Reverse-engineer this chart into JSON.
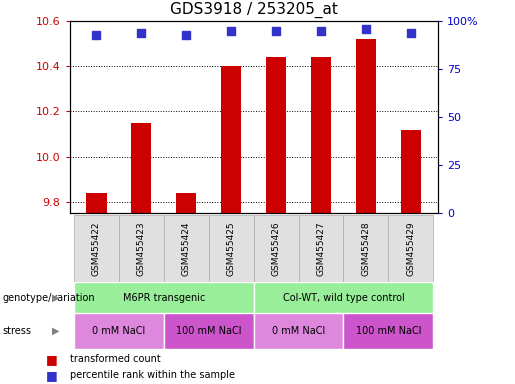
{
  "title": "GDS3918 / 253205_at",
  "samples": [
    "GSM455422",
    "GSM455423",
    "GSM455424",
    "GSM455425",
    "GSM455426",
    "GSM455427",
    "GSM455428",
    "GSM455429"
  ],
  "bar_values": [
    9.84,
    10.15,
    9.84,
    10.4,
    10.44,
    10.44,
    10.52,
    10.12
  ],
  "percentile_values": [
    93,
    94,
    93,
    95,
    95,
    95,
    96,
    94
  ],
  "ylim_left": [
    9.75,
    10.6
  ],
  "ylim_right": [
    0,
    100
  ],
  "yticks_left": [
    9.8,
    10.0,
    10.2,
    10.4,
    10.6
  ],
  "yticks_right": [
    0,
    25,
    50,
    75,
    100
  ],
  "bar_color": "#cc0000",
  "dot_color": "#3333cc",
  "bar_width": 0.45,
  "dot_size": 40,
  "genotype_groups": [
    {
      "label": "M6PR transgenic",
      "start": 0,
      "end": 4,
      "color": "#99ee99"
    },
    {
      "label": "Col-WT, wild type control",
      "start": 4,
      "end": 8,
      "color": "#99ee99"
    }
  ],
  "stress_groups": [
    {
      "label": "0 mM NaCl",
      "start": 0,
      "end": 2,
      "color": "#dd88dd"
    },
    {
      "label": "100 mM NaCl",
      "start": 2,
      "end": 4,
      "color": "#cc55cc"
    },
    {
      "label": "0 mM NaCl",
      "start": 4,
      "end": 6,
      "color": "#dd88dd"
    },
    {
      "label": "100 mM NaCl",
      "start": 6,
      "end": 8,
      "color": "#cc55cc"
    }
  ],
  "legend_bar_label": "transformed count",
  "legend_dot_label": "percentile rank within the sample",
  "genotype_label": "genotype/variation",
  "stress_label": "stress",
  "title_fontsize": 11,
  "tick_fontsize": 8,
  "label_fontsize": 8
}
